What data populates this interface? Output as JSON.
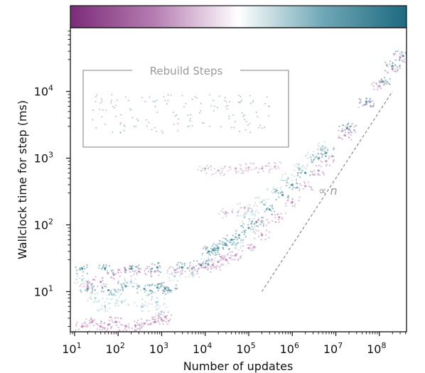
{
  "chart_data": {
    "type": "scatter",
    "title": "",
    "xlabel": "Number of updates",
    "ylabel": "Wallclock time for step (ms)",
    "xscale": "log",
    "yscale": "log",
    "xlim": [
      8,
      420000000
    ],
    "ylim": [
      2.5,
      90000
    ],
    "x_ticks": [
      10,
      100,
      1000,
      10000,
      100000,
      1000000,
      10000000,
      100000000
    ],
    "x_tick_labels": [
      "10",
      "10",
      "10",
      "10",
      "10",
      "10",
      "10",
      "10"
    ],
    "x_tick_exponents": [
      "1",
      "2",
      "3",
      "4",
      "5",
      "6",
      "7",
      "8"
    ],
    "y_ticks": [
      10,
      100,
      1000,
      10000
    ],
    "y_tick_labels": [
      "10",
      "10",
      "10",
      "10"
    ],
    "y_tick_exponents": [
      "1",
      "2",
      "3",
      "4"
    ],
    "grid": false,
    "colorbar": {
      "position": "top",
      "colormap": [
        "#7b2b78",
        "#b67db2",
        "#ffffff",
        "#6fa8b6",
        "#1d6a80"
      ]
    },
    "inset": {
      "title": "Rebuild Steps"
    },
    "reference_line": {
      "label": "∝ n",
      "points": [
        [
          200000,
          10
        ],
        [
          200000000,
          10000
        ]
      ]
    },
    "series": [
      {
        "color": "#c080b8",
        "points": [
          [
            15,
            3
          ],
          [
            25,
            3.5
          ],
          [
            40,
            3
          ],
          [
            60,
            3.2
          ],
          [
            90,
            3.5
          ],
          [
            150,
            3
          ],
          [
            250,
            3.1
          ],
          [
            400,
            3.3
          ],
          [
            700,
            3.5
          ],
          [
            1000,
            3.8
          ],
          [
            1200,
            4.2
          ],
          [
            20,
            12
          ],
          [
            40,
            14
          ],
          [
            80,
            18
          ],
          [
            150,
            21
          ],
          [
            300,
            20
          ],
          [
            700,
            20
          ],
          [
            2000,
            21
          ],
          [
            5000,
            22
          ],
          [
            10000,
            23
          ],
          [
            15000,
            25
          ],
          [
            20000,
            28
          ],
          [
            30000,
            30
          ],
          [
            50000,
            35
          ],
          [
            100000,
            45
          ],
          [
            200000,
            70
          ],
          [
            500000,
            130
          ],
          [
            1000000,
            220
          ],
          [
            2000000,
            380
          ],
          [
            4000000,
            650
          ],
          [
            6000000,
            900
          ],
          [
            16000000,
            2200
          ],
          [
            20000000,
            2700
          ],
          [
            50000000,
            6500
          ],
          [
            100000000,
            12000
          ],
          [
            200000000,
            22000
          ],
          [
            300000000,
            32000
          ]
        ]
      },
      {
        "color": "#3e8797",
        "points": [
          [
            20,
            11
          ],
          [
            60,
            10.5
          ],
          [
            150,
            12
          ],
          [
            400,
            11
          ],
          [
            800,
            11.5
          ],
          [
            1200,
            11
          ],
          [
            1500,
            10.5
          ],
          [
            15,
            22
          ],
          [
            50,
            22
          ],
          [
            200,
            22
          ],
          [
            800,
            23
          ],
          [
            3000,
            23
          ],
          [
            8000,
            25
          ],
          [
            12000,
            40
          ],
          [
            15000,
            42
          ],
          [
            20000,
            45
          ],
          [
            30000,
            50
          ],
          [
            40000,
            60
          ],
          [
            60000,
            70
          ],
          [
            100000,
            90
          ],
          [
            150000,
            110
          ],
          [
            300000,
            170
          ],
          [
            600000,
            280
          ],
          [
            1000000,
            400
          ],
          [
            2000000,
            600
          ],
          [
            4000000,
            1000
          ],
          [
            6000000,
            1200
          ],
          [
            18000000,
            2800
          ],
          [
            50000000,
            7000
          ],
          [
            120000000,
            14000
          ],
          [
            200000000,
            24000
          ],
          [
            350000000,
            34000
          ]
        ]
      },
      {
        "color": "#a9ccd5",
        "points": [
          [
            15,
            15
          ],
          [
            30,
            8
          ],
          [
            50,
            6
          ],
          [
            80,
            9
          ],
          [
            120,
            7
          ],
          [
            200,
            14
          ],
          [
            350,
            6
          ],
          [
            500,
            9
          ],
          [
            800,
            7
          ],
          [
            1000,
            5
          ],
          [
            2000,
            17
          ],
          [
            5000,
            19
          ],
          [
            12000,
            30
          ],
          [
            25000,
            55
          ],
          [
            50000,
            50
          ],
          [
            80000,
            130
          ],
          [
            120000,
            160
          ],
          [
            200000,
            220
          ],
          [
            400000,
            340
          ],
          [
            800000,
            500
          ],
          [
            1500000,
            700
          ],
          [
            3000000,
            1100
          ],
          [
            5000000,
            1500
          ]
        ]
      },
      {
        "color": "#c9a3c6",
        "points": [
          [
            10000,
            700
          ],
          [
            20000,
            650
          ],
          [
            50000,
            700
          ],
          [
            100000,
            720
          ],
          [
            200000,
            700
          ],
          [
            400000,
            750
          ],
          [
            30000,
            150
          ],
          [
            80000,
            180
          ],
          [
            200000,
            110
          ]
        ]
      }
    ]
  }
}
